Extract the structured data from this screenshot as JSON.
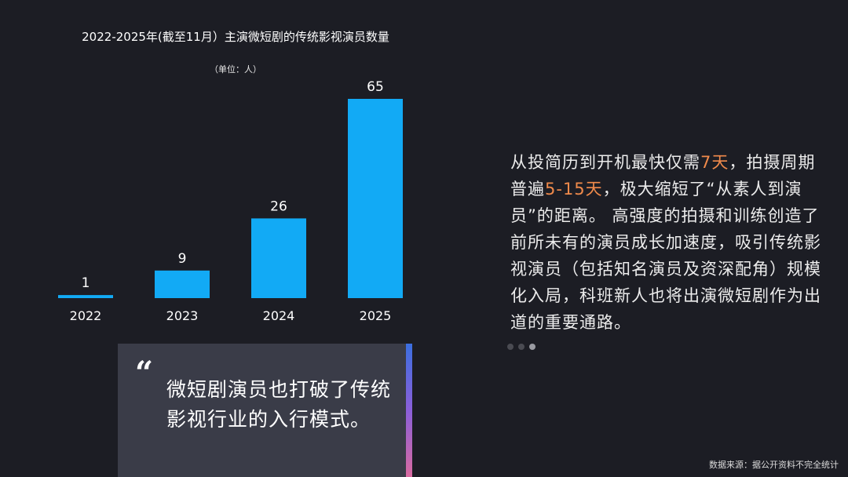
{
  "chart": {
    "title": "2022-2025年(截至11月）主演微短剧的传统影视演员数量",
    "unit": "（单位：人）"
  },
  "chart_data": {
    "type": "bar",
    "categories": [
      "2022",
      "2023",
      "2024",
      "2025"
    ],
    "values": [
      1,
      9,
      26,
      65
    ],
    "title": "2022-2025年(截至11月）主演微短剧的传统影视演员数量",
    "subtitle": "（单位：人）",
    "xlabel": "",
    "ylabel": "",
    "ylim": [
      0,
      65
    ],
    "grid": false,
    "bar_color": "#12aaf5"
  },
  "paragraph": {
    "p1": "从投简历到开机最快仅需",
    "hl1": "7天",
    "p2": "，拍摄周期普遍",
    "hl2": "5-15天",
    "p3": "，极大缩短了“从素人到演员”的距离。 高强度的拍摄和训练创造了前所未有的演员成长加速度，吸引传统影视演员（包括知名演员及资深配角）规模化入局，科班新人也将出演微短剧作为出道的重要通路。"
  },
  "quote": {
    "mark": "“",
    "text": "微短剧演员也打破了传统影视行业的入行模式。"
  },
  "source": "数据来源：据公开资料不完全统计",
  "colors": {
    "background": "#1c1d24",
    "bar": "#12aaf5",
    "highlight": "#f08a4b",
    "quote_box": "#3a3c48"
  }
}
